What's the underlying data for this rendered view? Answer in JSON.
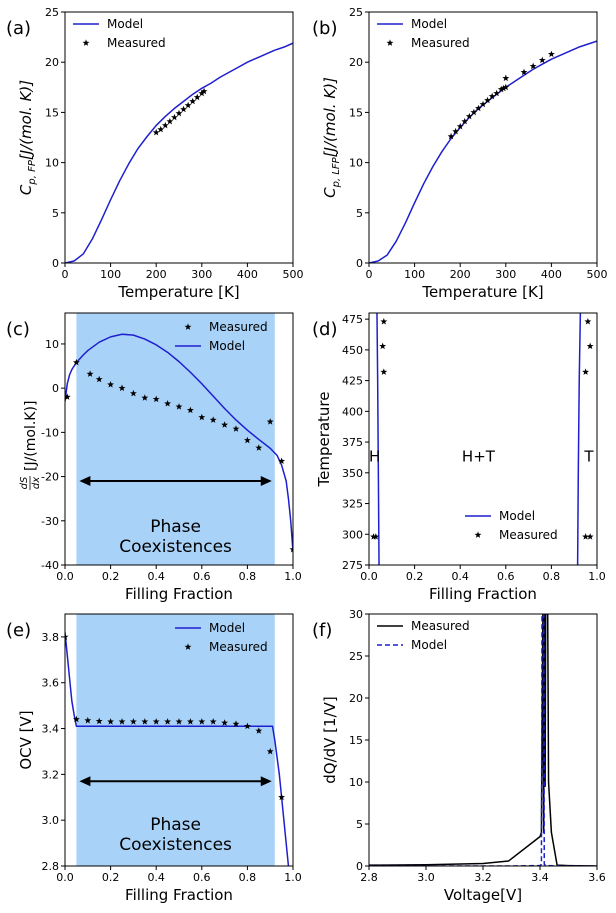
{
  "chart_data": [
    {
      "id": "a",
      "type": "line+scatter",
      "panel_label": "(a)",
      "xlabel": "Temperature [K]",
      "ylabel_main": "C",
      "ylabel_sub": "p, FP",
      "ylabel_tail": "[J/(mol. K)]",
      "xlim": [
        0,
        500
      ],
      "ylim": [
        0,
        25
      ],
      "xticks": [
        0,
        100,
        200,
        300,
        400,
        500
      ],
      "yticks": [
        0,
        5,
        10,
        15,
        20,
        25
      ],
      "legend": {
        "position": "top-left",
        "entries": [
          "Model",
          "Measured"
        ]
      },
      "series": [
        {
          "name": "Model",
          "kind": "line",
          "color": "#1f1fcf",
          "x": [
            0,
            20,
            40,
            60,
            80,
            100,
            120,
            140,
            160,
            180,
            200,
            220,
            240,
            260,
            280,
            300,
            320,
            340,
            360,
            380,
            400,
            420,
            440,
            460,
            480,
            500
          ],
          "y": [
            0,
            0.2,
            0.9,
            2.4,
            4.3,
            6.3,
            8.2,
            9.9,
            11.4,
            12.6,
            13.7,
            14.6,
            15.4,
            16.1,
            16.8,
            17.4,
            17.9,
            18.5,
            19.0,
            19.5,
            20.0,
            20.4,
            20.8,
            21.2,
            21.5,
            21.9
          ]
        },
        {
          "name": "Measured",
          "kind": "scatter",
          "marker": "star",
          "color": "#000000",
          "x": [
            200,
            210,
            220,
            230,
            240,
            250,
            260,
            270,
            280,
            290,
            300,
            305
          ],
          "y": [
            13.0,
            13.3,
            13.7,
            14.1,
            14.5,
            14.9,
            15.3,
            15.7,
            16.1,
            16.5,
            16.9,
            17.1
          ]
        }
      ]
    },
    {
      "id": "b",
      "type": "line+scatter",
      "panel_label": "(b)",
      "xlabel": "Temperature [K]",
      "ylabel_main": "C",
      "ylabel_sub": "p, LFP",
      "ylabel_tail": "[J/(mol. K)]",
      "xlim": [
        0,
        500
      ],
      "ylim": [
        0,
        25
      ],
      "xticks": [
        0,
        100,
        200,
        300,
        400,
        500
      ],
      "yticks": [
        0,
        5,
        10,
        15,
        20,
        25
      ],
      "legend": {
        "position": "top-left",
        "entries": [
          "Model",
          "Measured"
        ]
      },
      "series": [
        {
          "name": "Model",
          "kind": "line",
          "color": "#1f1fcf",
          "x": [
            0,
            20,
            40,
            60,
            80,
            100,
            120,
            140,
            160,
            180,
            200,
            220,
            240,
            260,
            280,
            300,
            320,
            340,
            360,
            380,
            400,
            420,
            440,
            460,
            480,
            500
          ],
          "y": [
            0,
            0.2,
            0.8,
            2.2,
            4.0,
            6.0,
            7.9,
            9.6,
            11.1,
            12.4,
            13.5,
            14.5,
            15.4,
            16.1,
            16.8,
            17.5,
            18.1,
            18.7,
            19.3,
            19.8,
            20.3,
            20.7,
            21.1,
            21.5,
            21.8,
            22.1
          ]
        },
        {
          "name": "Measured",
          "kind": "scatter",
          "marker": "star",
          "color": "#000000",
          "x": [
            180,
            190,
            200,
            210,
            220,
            230,
            240,
            250,
            260,
            270,
            280,
            290,
            295,
            300,
            300,
            340,
            360,
            380,
            400
          ],
          "y": [
            12.6,
            13.1,
            13.6,
            14.1,
            14.6,
            15.0,
            15.4,
            15.8,
            16.2,
            16.6,
            16.9,
            17.3,
            17.4,
            17.5,
            18.4,
            19.0,
            19.6,
            20.2,
            20.8
          ]
        }
      ]
    },
    {
      "id": "c",
      "type": "line+scatter",
      "panel_label": "(c)",
      "xlabel": "Filling Fraction",
      "ylabel_frac_num": "dS",
      "ylabel_frac_den": "dx",
      "ylabel_tail": "[J/(mol.K)]",
      "xlim": [
        0,
        1
      ],
      "ylim": [
        -40,
        17
      ],
      "xticks": [
        0.0,
        0.2,
        0.4,
        0.6,
        0.8,
        1.0
      ],
      "yticks": [
        -40,
        -30,
        -20,
        -10,
        0,
        10
      ],
      "shaded_region": {
        "x0": 0.05,
        "x1": 0.92,
        "label_lines": [
          "Phase",
          "Coexistences"
        ]
      },
      "arrow": {
        "x0": 0.05,
        "x1": 0.92,
        "y": -21
      },
      "legend": {
        "position": "top-right",
        "entries": [
          "Measured",
          "Model"
        ]
      },
      "series": [
        {
          "name": "Model",
          "kind": "line",
          "color": "#1f1fcf",
          "x": [
            0,
            0.01,
            0.02,
            0.03,
            0.05,
            0.08,
            0.1,
            0.15,
            0.2,
            0.25,
            0.3,
            0.35,
            0.4,
            0.45,
            0.5,
            0.55,
            0.6,
            0.65,
            0.7,
            0.75,
            0.8,
            0.85,
            0.9,
            0.93,
            0.95,
            0.97,
            0.98,
            0.99,
            1.0
          ],
          "y": [
            -3,
            1,
            3,
            4.2,
            5.8,
            7.5,
            8.5,
            10.4,
            11.6,
            12.2,
            12.0,
            11.1,
            9.8,
            8.1,
            6.0,
            3.6,
            1.0,
            -1.8,
            -4.6,
            -7.2,
            -9.5,
            -11.6,
            -13.6,
            -15.2,
            -17.4,
            -21.0,
            -25.0,
            -30.0,
            -37.0
          ]
        },
        {
          "name": "Measured",
          "kind": "scatter",
          "marker": "star",
          "color": "#000000",
          "x": [
            0.01,
            0.05,
            0.11,
            0.15,
            0.2,
            0.25,
            0.3,
            0.35,
            0.4,
            0.45,
            0.5,
            0.55,
            0.6,
            0.65,
            0.7,
            0.75,
            0.8,
            0.85,
            0.9,
            0.95,
            1.0
          ],
          "y": [
            -2.0,
            5.8,
            3.2,
            2.0,
            0.8,
            0.0,
            -1.2,
            -2.2,
            -2.5,
            -3.5,
            -4.2,
            -5.0,
            -6.6,
            -7.2,
            -8.3,
            -9.2,
            -11.8,
            -13.5,
            -7.6,
            -16.5,
            -36.5
          ]
        }
      ]
    },
    {
      "id": "d",
      "type": "phase-diagram",
      "panel_label": "(d)",
      "xlabel": "Filling Fraction",
      "ylabel": "Temperature",
      "xlim": [
        0,
        1
      ],
      "ylim": [
        275,
        480
      ],
      "xticks": [
        0.0,
        0.2,
        0.4,
        0.6,
        0.8,
        1.0
      ],
      "yticks": [
        275,
        300,
        325,
        350,
        375,
        400,
        425,
        450,
        475
      ],
      "region_labels": [
        {
          "text": "H",
          "x": 0.025,
          "y": 364
        },
        {
          "text": "H+T",
          "x": 0.48,
          "y": 364
        },
        {
          "text": "T",
          "x": 0.965,
          "y": 364
        }
      ],
      "legend": {
        "position": "lower-right",
        "entries": [
          "Model",
          "Measured"
        ]
      },
      "series": [
        {
          "name": "Model (left boundary)",
          "kind": "line",
          "color": "#1f1fcf",
          "x": [
            0.044,
            0.041,
            0.038,
            0.035
          ],
          "y": [
            275,
            350,
            425,
            480
          ]
        },
        {
          "name": "Model (right boundary)",
          "kind": "line",
          "color": "#1f1fcf",
          "x": [
            0.915,
            0.918,
            0.922,
            0.927
          ],
          "y": [
            275,
            350,
            425,
            480
          ]
        },
        {
          "name": "Measured",
          "kind": "scatter",
          "marker": "star",
          "color": "#000000",
          "x": [
            0.02,
            0.065,
            0.06,
            0.065,
            0.03,
            0.95,
            0.97,
            0.96,
            0.95,
            0.97
          ],
          "y": [
            298,
            432,
            453,
            473,
            298,
            432,
            453,
            473,
            298,
            298
          ]
        }
      ]
    },
    {
      "id": "e",
      "type": "line+scatter",
      "panel_label": "(e)",
      "xlabel": "Filling Fraction",
      "ylabel": "OCV [V]",
      "xlim": [
        0,
        1
      ],
      "ylim": [
        2.8,
        3.9
      ],
      "xticks": [
        0.0,
        0.2,
        0.4,
        0.6,
        0.8,
        1.0
      ],
      "yticks": [
        2.8,
        3.0,
        3.2,
        3.4,
        3.6,
        3.8
      ],
      "shaded_region": {
        "x0": 0.05,
        "x1": 0.92,
        "label_lines": [
          "Phase",
          "Coexistences"
        ]
      },
      "arrow": {
        "x0": 0.05,
        "x1": 0.92,
        "y": 3.17
      },
      "legend": {
        "position": "top-right",
        "entries": [
          "Model",
          "Measured"
        ]
      },
      "series": [
        {
          "name": "Model",
          "kind": "line",
          "color": "#1f1fcf",
          "x": [
            0,
            0.01,
            0.02,
            0.03,
            0.04,
            0.05,
            0.2,
            0.4,
            0.6,
            0.8,
            0.91,
            0.92,
            0.94,
            0.96,
            0.97,
            0.98
          ],
          "y": [
            3.82,
            3.72,
            3.62,
            3.52,
            3.46,
            3.41,
            3.41,
            3.41,
            3.41,
            3.41,
            3.41,
            3.35,
            3.2,
            3.0,
            2.9,
            2.8
          ]
        },
        {
          "name": "Measured",
          "kind": "scatter",
          "marker": "star",
          "color": "#000000",
          "x": [
            0.0,
            0.05,
            0.1,
            0.15,
            0.2,
            0.25,
            0.3,
            0.35,
            0.4,
            0.45,
            0.5,
            0.55,
            0.6,
            0.65,
            0.7,
            0.75,
            0.8,
            0.85,
            0.9,
            0.95
          ],
          "y": [
            3.8,
            3.44,
            3.435,
            3.432,
            3.43,
            3.43,
            3.43,
            3.43,
            3.43,
            3.43,
            3.43,
            3.43,
            3.43,
            3.43,
            3.425,
            3.42,
            3.41,
            3.39,
            3.3,
            3.1
          ]
        }
      ]
    },
    {
      "id": "f",
      "type": "line",
      "panel_label": "(f)",
      "xlabel": "Voltage[V]",
      "ylabel": "dQ/dV [1/V]",
      "xlim": [
        2.8,
        3.6
      ],
      "ylim": [
        0,
        30
      ],
      "xticks": [
        2.8,
        3.0,
        3.2,
        3.4,
        3.6
      ],
      "yticks": [
        0,
        5,
        10,
        15,
        20,
        25,
        30
      ],
      "legend": {
        "position": "top-left",
        "entries": [
          "Measured",
          "Model"
        ]
      },
      "series": [
        {
          "name": "Measured",
          "kind": "line",
          "color": "#000000",
          "x": [
            2.8,
            3.0,
            3.2,
            3.29,
            3.4,
            3.405,
            3.41,
            3.413,
            3.415,
            3.418,
            3.42,
            3.424,
            3.427,
            3.43,
            3.44,
            3.46,
            3.5,
            3.6
          ],
          "y": [
            0.1,
            0.15,
            0.3,
            0.6,
            3.5,
            4.0,
            30,
            4.0,
            30,
            9.5,
            30,
            30,
            30,
            10.0,
            4.0,
            0.1,
            0.05,
            0.0
          ]
        },
        {
          "name": "Model",
          "kind": "line",
          "dashed": true,
          "color": "#1f1fcf",
          "x": [
            2.8,
            3.3,
            3.4,
            3.405,
            3.407,
            3.41,
            3.413,
            3.415,
            3.42,
            3.5,
            3.6
          ],
          "y": [
            0,
            0,
            0.05,
            0.2,
            30,
            30,
            30,
            0.2,
            0.05,
            0,
            0
          ]
        }
      ]
    }
  ]
}
